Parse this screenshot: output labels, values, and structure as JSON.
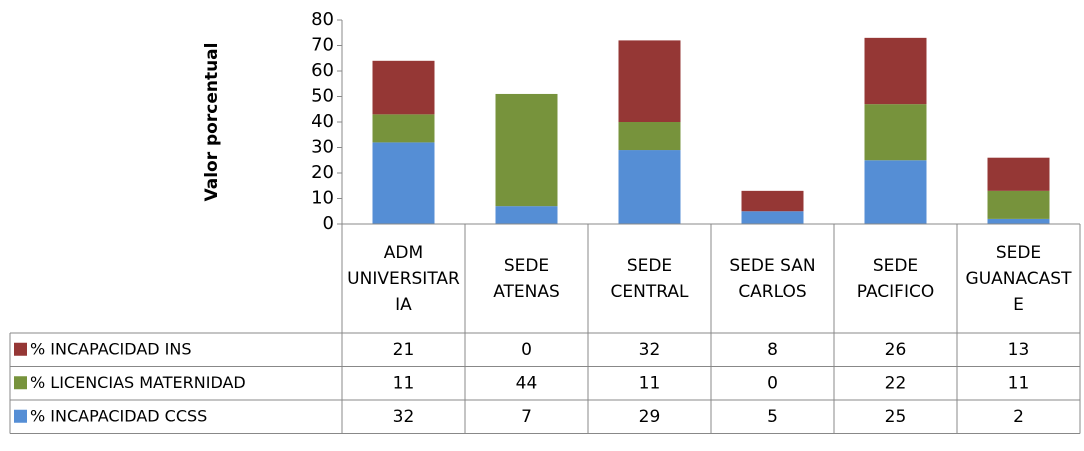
{
  "chart_data": {
    "type": "stacked_bar",
    "y_axis_label": "Valor porcentual",
    "categories": [
      "ADM UNIVERSITARIA",
      "SEDE ATENAS",
      "SEDE CENTRAL",
      "SEDE SAN CARLOS",
      "SEDE PACIFICO",
      "SEDE GUANACASTE"
    ],
    "series": [
      {
        "name": "% INCAPACIDAD CCSS",
        "color": "#558ed5",
        "values": [
          32,
          7,
          29,
          5,
          25,
          2
        ]
      },
      {
        "name": "% LICENCIAS MATERNIDAD",
        "color": "#77933c",
        "values": [
          11,
          44,
          11,
          0,
          22,
          11
        ]
      },
      {
        "name": "% INCAPACIDAD INS",
        "color": "#953735",
        "values": [
          21,
          0,
          32,
          8,
          26,
          13
        ]
      }
    ],
    "ylim": [
      0,
      80
    ],
    "yticks": [
      0,
      10,
      20,
      30,
      40,
      50,
      60,
      70,
      80
    ],
    "grid": false,
    "data_table": true
  }
}
